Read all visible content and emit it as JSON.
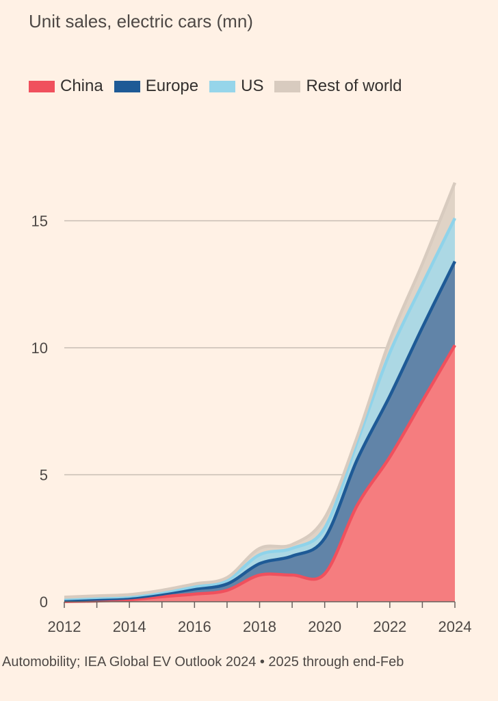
{
  "chart_data": {
    "type": "area",
    "stacked": true,
    "title": "Unit sales, electric cars (mn)",
    "x": [
      2012,
      2013,
      2014,
      2015,
      2016,
      2017,
      2018,
      2019,
      2020,
      2021,
      2022,
      2023,
      2024
    ],
    "series": [
      {
        "name": "China",
        "color": "#f0505d",
        "fill": "#f57d7f",
        "values": [
          0.01,
          0.03,
          0.08,
          0.2,
          0.3,
          0.45,
          1.05,
          1.05,
          1.1,
          3.8,
          5.7,
          7.9,
          10.1
        ]
      },
      {
        "name": "Europe",
        "color": "#1e5a96",
        "fill": "#6184a8",
        "values": [
          0.05,
          0.07,
          0.07,
          0.1,
          0.2,
          0.25,
          0.45,
          0.75,
          1.4,
          1.8,
          2.4,
          2.9,
          3.3
        ]
      },
      {
        "name": "US",
        "color": "#8fd3ea",
        "fill": "#acd8e4",
        "values": [
          0.06,
          0.07,
          0.07,
          0.08,
          0.1,
          0.15,
          0.35,
          0.3,
          0.4,
          0.7,
          1.7,
          1.7,
          1.7
        ]
      },
      {
        "name": "Rest of world",
        "color": "#d8cbbf",
        "fill": "#e0d3c6",
        "values": [
          0.06,
          0.06,
          0.06,
          0.07,
          0.1,
          0.1,
          0.25,
          0.15,
          0.4,
          0.2,
          0.5,
          0.8,
          1.4
        ]
      }
    ],
    "yticks": [
      0,
      5,
      10,
      15
    ],
    "xticks": [
      2012,
      2014,
      2016,
      2018,
      2020,
      2022,
      2024
    ],
    "ylim": [
      0,
      16.6
    ],
    "xlim": [
      2012,
      2024
    ],
    "grid": true,
    "legend_position": "top-left",
    "xlabel": "",
    "ylabel": ""
  },
  "footer": "Automobility; IEA Global EV Outlook 2024 • 2025 through end-Feb"
}
